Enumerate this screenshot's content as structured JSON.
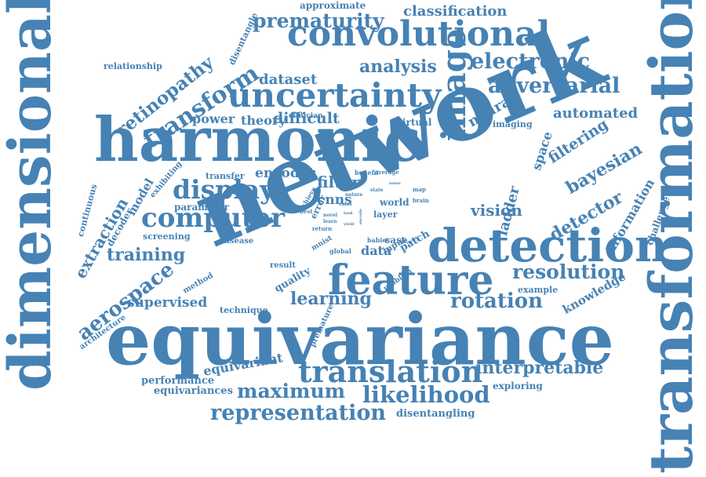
{
  "cloud": {
    "color": "#4682b4",
    "background": "#ffffff",
    "words": [
      "network",
      "equivariance",
      "harmonic",
      "dimensional",
      "transformation",
      "detection",
      "feature",
      "convolutional",
      "uncertainty",
      "image",
      "translation",
      "computer",
      "transform",
      "display",
      "adversarial",
      "electronic",
      "prematurity",
      "representation",
      "likelihood",
      "maximum",
      "rotation",
      "resolution",
      "retinopathy",
      "aerospace",
      "learning",
      "bayesian",
      "detector",
      "interpretable",
      "classification",
      "analysis",
      "dataset",
      "filter",
      "vision",
      "extraction",
      "training",
      "filtering",
      "automated",
      "space",
      "neural",
      "difficult",
      "supervised",
      "knowledge",
      "theory",
      "power",
      "encoder",
      "ladder",
      "information",
      "equivariant",
      "approximate",
      "disentangle",
      "relationship",
      "clinician",
      "virtual",
      "imaging",
      "model",
      "parameter",
      "decoder",
      "screening",
      "disease",
      "method",
      "quality",
      "architecture",
      "technique",
      "performance",
      "equivariances",
      "exploring",
      "disentangling",
      "premature",
      "example",
      "challenge",
      "continuous",
      "exhibiting",
      "transfer",
      "cnns",
      "data",
      "patch",
      "case",
      "input",
      "result",
      "mnist",
      "global",
      "babies",
      "problem",
      "error",
      "achieve",
      "retinal",
      "benefit",
      "average",
      "nature",
      "state",
      "map",
      "brain",
      "world",
      "layer",
      "best",
      "return",
      "class",
      "way",
      "encode",
      "novel",
      "learn",
      "task",
      "yield",
      "noise",
      "upload",
      "mode"
    ]
  }
}
